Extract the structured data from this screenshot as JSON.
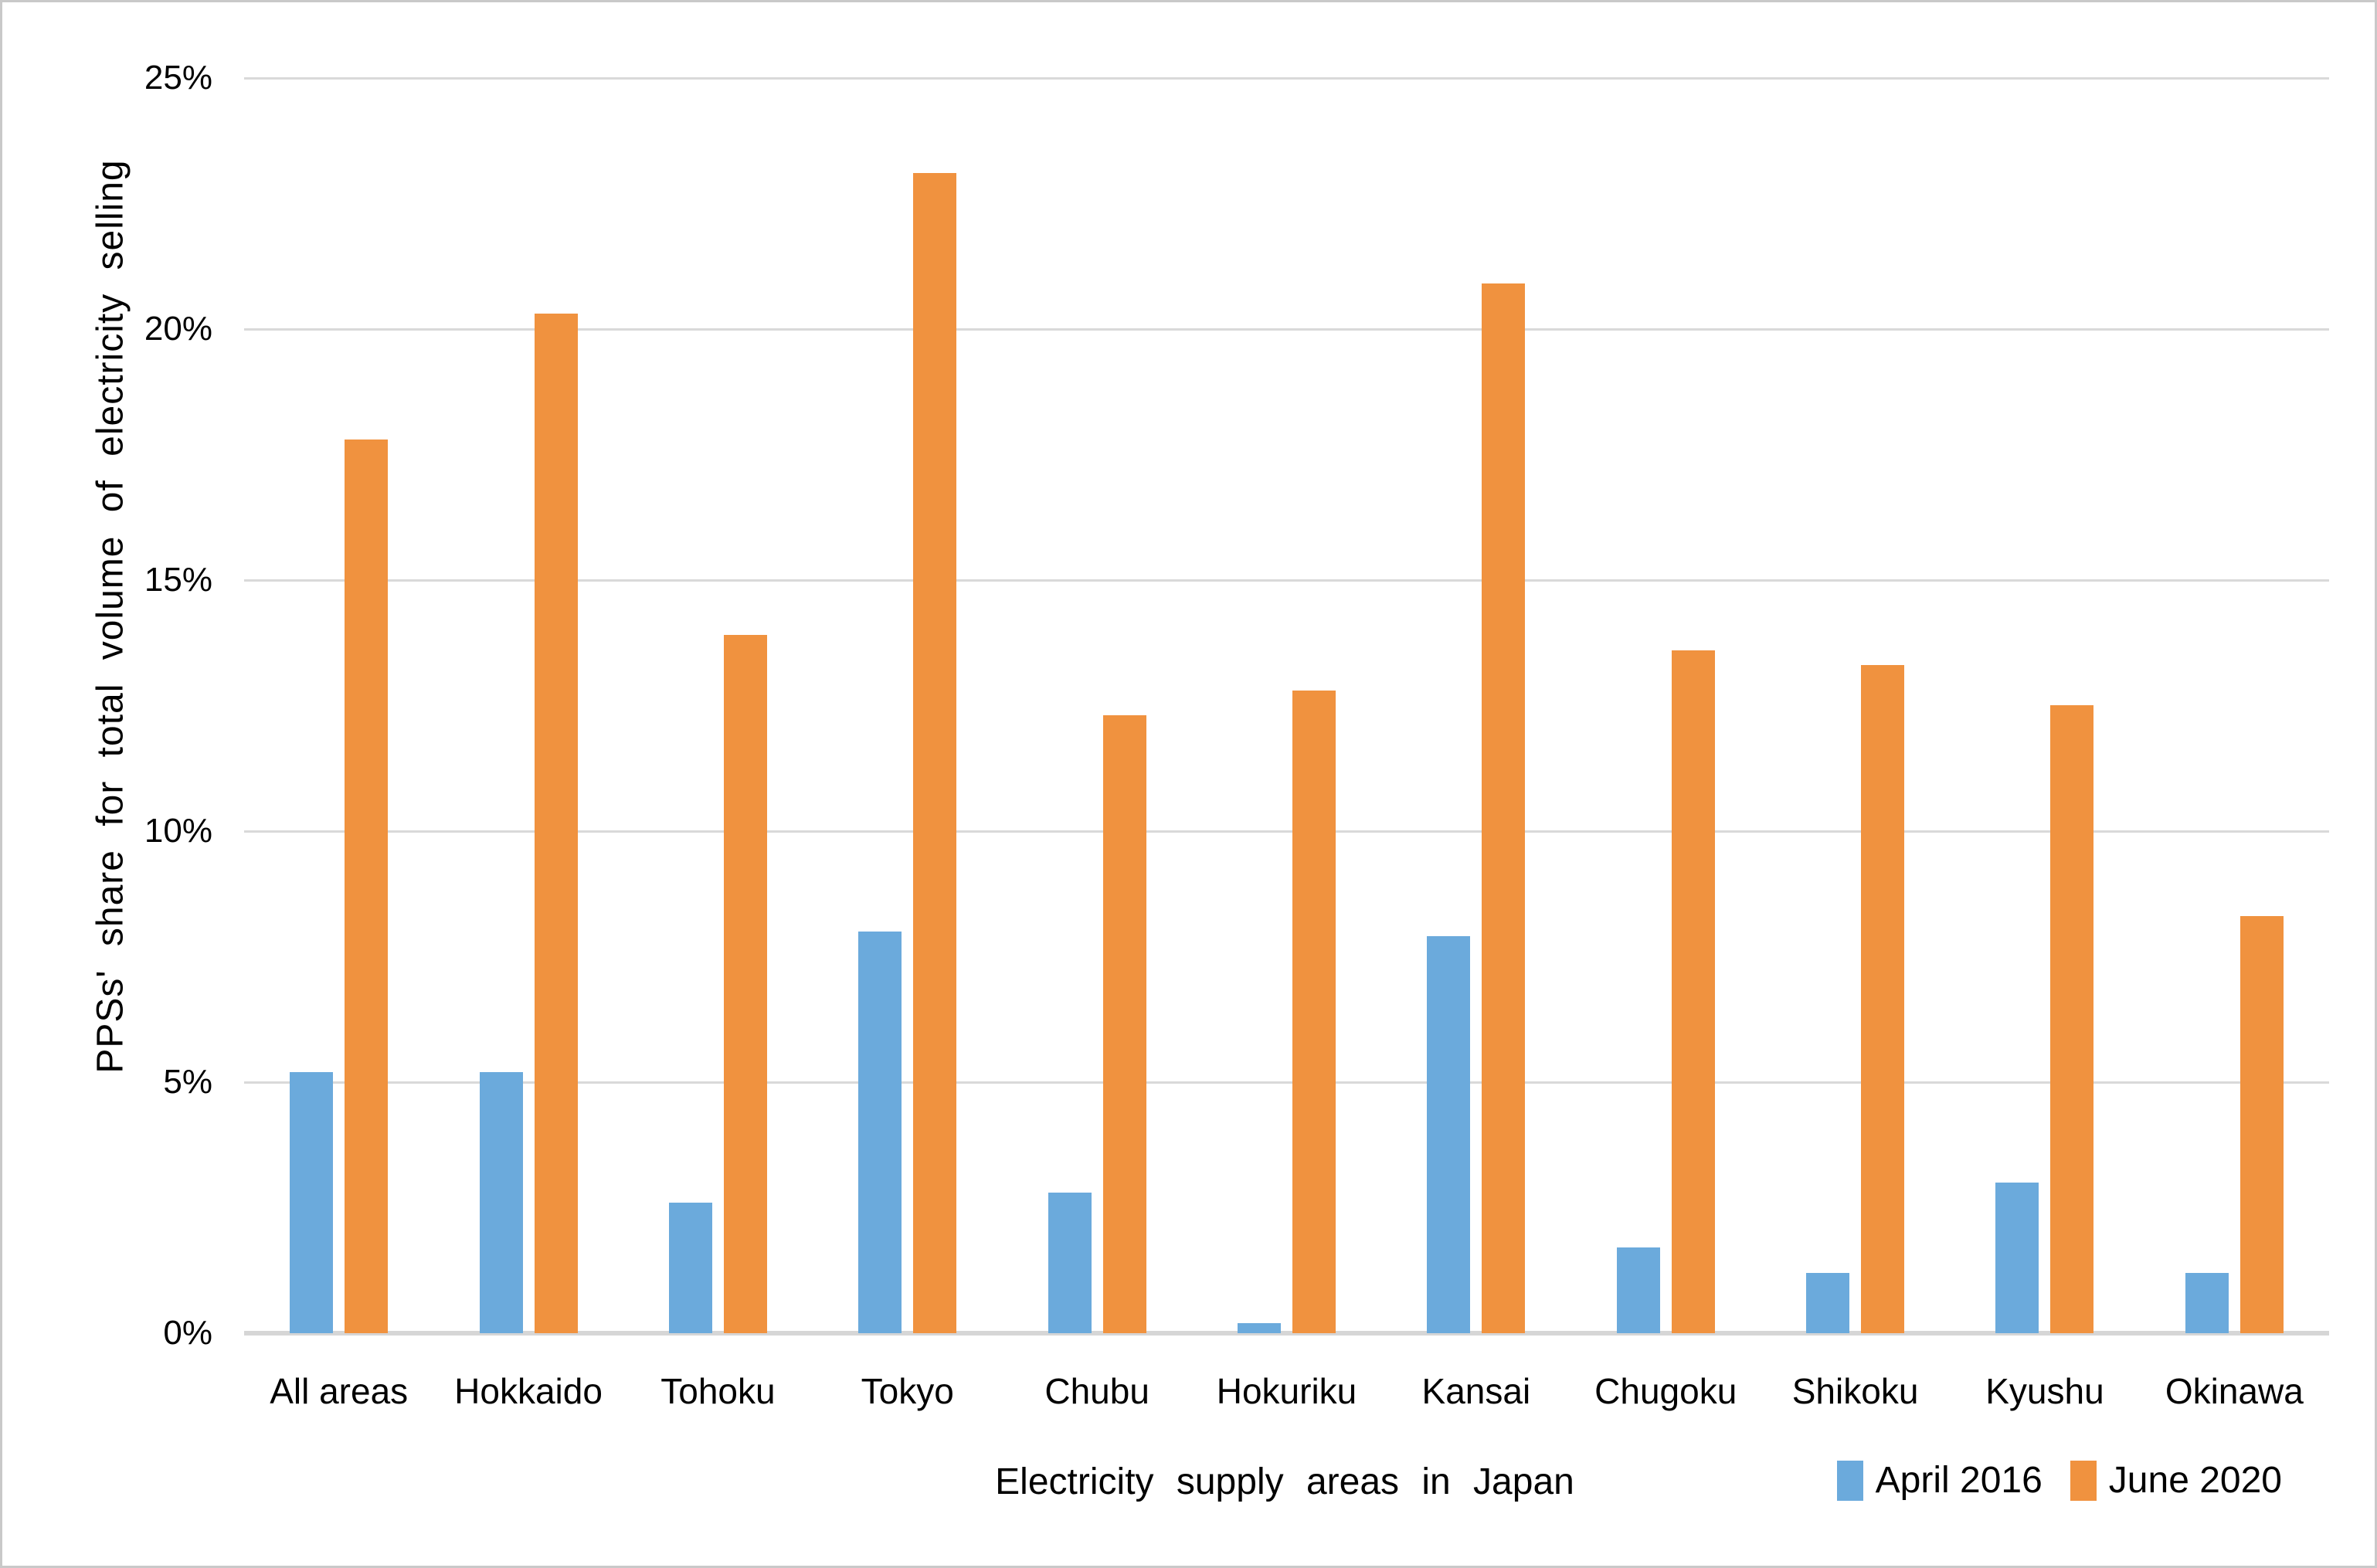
{
  "chart_data": {
    "type": "bar",
    "title": "",
    "xlabel": "Electricity  supply  areas  in  Japan",
    "ylabel": "PPSs'  share  for  total  volume  of  electricity  selling",
    "categories": [
      "All areas",
      "Hokkaido",
      "Tohoku",
      "Tokyo",
      "Chubu",
      "Hokuriku",
      "Kansai",
      "Chugoku",
      "Shikoku",
      "Kyushu",
      "Okinawa"
    ],
    "series": [
      {
        "name": "April 2016",
        "color": "#6BAADC",
        "values": [
          5.2,
          5.2,
          2.6,
          8.0,
          2.8,
          0.2,
          7.9,
          1.7,
          1.2,
          3.0,
          1.2
        ]
      },
      {
        "name": "June 2020",
        "color": "#F0923F",
        "values": [
          17.8,
          20.3,
          13.9,
          23.1,
          12.3,
          12.8,
          20.9,
          13.6,
          13.3,
          12.5,
          8.3
        ]
      }
    ],
    "ylim": [
      0,
      25
    ],
    "ytick_step": 5,
    "ytick_labels": [
      "0%",
      "5%",
      "10%",
      "15%",
      "20%",
      "25%"
    ],
    "grid": true,
    "legend_position": "bottom-right",
    "gridline_color": "#D9D9D9"
  }
}
